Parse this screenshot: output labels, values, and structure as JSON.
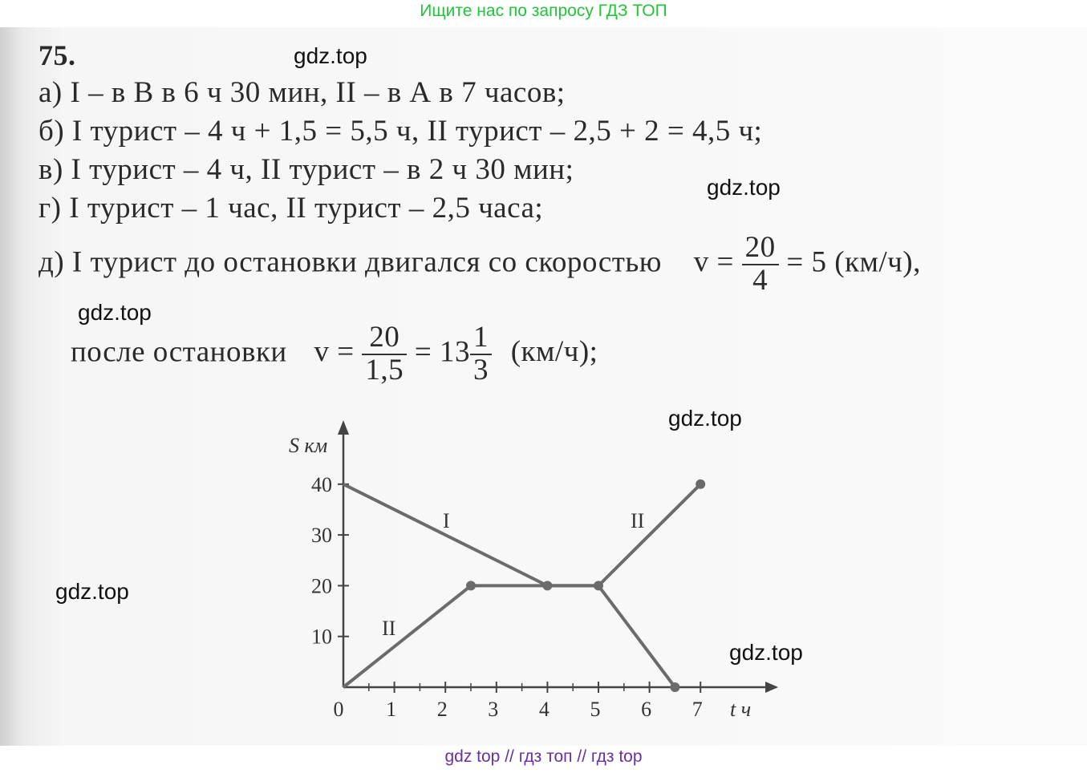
{
  "banner_top": "Ищите нас по запросу ГДЗ ТОП",
  "banner_bottom": "gdz top  //  гдз топ  //  гдз top",
  "watermark": "gdz.top",
  "problem_number": "75.",
  "lines": {
    "a": "а)  I – в В в 6 ч 30 мин,  II – в А в 7 часов;",
    "b": "б)  I турист –  4 ч + 1,5 = 5,5 ч,  II турист –  2,5 + 2 = 4,5 ч;",
    "v": "в)  I турист –  4 ч,  II турист –  в 2 ч 30 мин;",
    "g": "г)  I турист –  1 час,  II турист –  2,5 часа;",
    "d_text": "д)  I турист до остановки двигался со скоростью",
    "d_v": "v =",
    "d_num": "20",
    "d_den": "4",
    "d_result": "= 5 (км/ч),",
    "e_text": "после остановки",
    "e_v": "v =",
    "e_num": "20",
    "e_den": "1,5",
    "e_eq": "= 13",
    "e_fnum": "1",
    "e_fden": "3",
    "e_unit": "(км/ч);"
  },
  "chart_data": {
    "type": "line",
    "ylabel": "S км",
    "xlabel": "t ч",
    "xlim": [
      0,
      7
    ],
    "ylim": [
      0,
      40
    ],
    "x_ticks": [
      "0",
      "1",
      "2",
      "3",
      "4",
      "5",
      "6",
      "7"
    ],
    "y_ticks": [
      "10",
      "20",
      "30",
      "40"
    ],
    "grid": false,
    "series": [
      {
        "name": "I",
        "points": [
          [
            0,
            40
          ],
          [
            4,
            20
          ],
          [
            5,
            20
          ],
          [
            6.5,
            0
          ]
        ]
      },
      {
        "name": "II",
        "points": [
          [
            0,
            0
          ],
          [
            2.5,
            20
          ],
          [
            5,
            20
          ],
          [
            7,
            40
          ]
        ]
      }
    ],
    "color": "#6b6b6b"
  }
}
